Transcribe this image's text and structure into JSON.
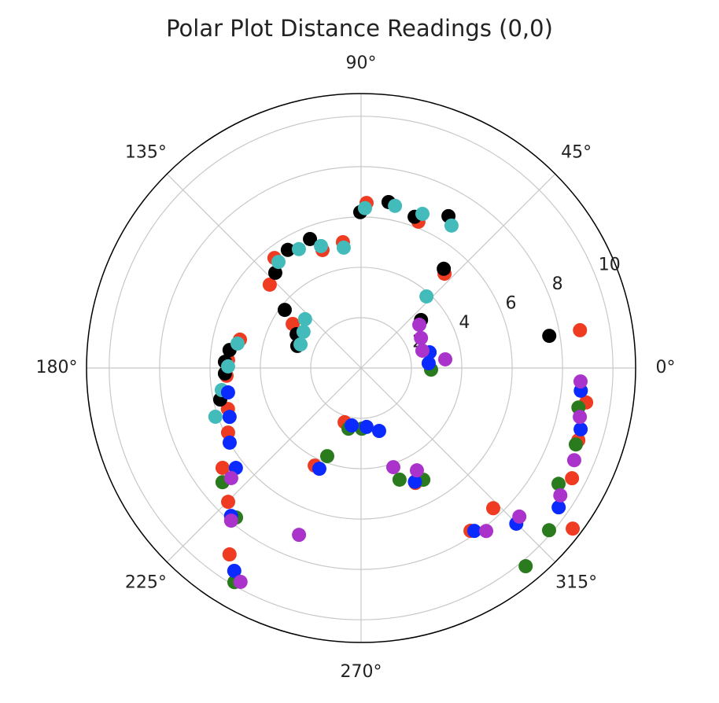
{
  "chart_data": {
    "type": "polar-scatter",
    "title": "Polar Plot Distance Readings (0,0)",
    "rlim": [
      0,
      10.9
    ],
    "rticks": [
      2,
      4,
      6,
      8,
      10
    ],
    "thetaticks": [
      {
        "value": 0,
        "label": "0°"
      },
      {
        "value": 45,
        "label": "45°"
      },
      {
        "value": 90,
        "label": "90°"
      },
      {
        "value": 135,
        "label": "135°"
      },
      {
        "value": 180,
        "label": "180°"
      },
      {
        "value": 225,
        "label": "225°"
      },
      {
        "value": 270,
        "label": "270°"
      },
      {
        "value": 315,
        "label": "315°"
      }
    ],
    "grid": true,
    "series": [
      {
        "color": "#ee3b22",
        "theta": [
          88.1,
          68.6,
          48.5,
          137.6,
          128.2,
          108.1,
          98.2,
          147.2,
          166.8,
          176.6,
          183.3,
          197.1,
          205.9,
          215.8,
          225.2,
          234.8,
          244.6,
          295.3,
          303.9,
          313.3,
          9.8,
          351.3,
          341.6,
          332.4,
          322.8,
          253.1
        ],
        "r": [
          6.56,
          6.24,
          5.0,
          4.91,
          5.56,
          4.93,
          5.05,
          3.23,
          4.94,
          5.29,
          5.35,
          5.53,
          5.87,
          6.78,
          7.49,
          9.06,
          4.29,
          5.05,
          7.79,
          7.65,
          8.82,
          9.04,
          9.09,
          9.45,
          10.55,
          2.25
        ]
      },
      {
        "color": "#000000",
        "theta": [
          90.3,
          80.6,
          70.5,
          60.1,
          50.2,
          111.6,
          121.8,
          132.0,
          142.7,
          152.3,
          160.9,
          172.2,
          177.4,
          182.3,
          192.6,
          9.7,
          38.7
        ],
        "r": [
          6.19,
          6.68,
          6.37,
          6.96,
          5.13,
          5.51,
          5.52,
          5.09,
          3.81,
          2.89,
          2.68,
          5.27,
          5.41,
          5.41,
          5.73,
          7.58,
          3.05
        ]
      },
      {
        "color": "#44bbbb",
        "theta": [
          88.6,
          78.2,
          68.3,
          57.6,
          47.6,
          98.2,
          108.2,
          117.6,
          127.9,
          138.9,
          147.8,
          158.7,
          168.8,
          179.3,
          189.0,
          198.5
        ],
        "r": [
          6.35,
          6.58,
          6.59,
          6.7,
          3.85,
          4.83,
          5.1,
          5.33,
          5.34,
          2.95,
          2.7,
          2.58,
          5.0,
          5.28,
          5.6,
          6.1
        ]
      },
      {
        "color": "#2a7a1e",
        "theta": [
          358.7,
          258.3,
          270.7,
          249.0,
          289.0,
          299.1,
          219.5,
          230.1,
          239.4,
          309.7,
          319.2,
          329.6,
          349.7,
          340.4
        ],
        "r": [
          2.78,
          2.46,
          2.41,
          3.75,
          4.69,
          5.08,
          7.13,
          7.74,
          9.88,
          10.23,
          9.86,
          9.09,
          8.77,
          9.05
        ]
      },
      {
        "color": "#0a2aff",
        "theta": [
          12.9,
          4.0,
          260.7,
          275.3,
          286.0,
          247.5,
          295.3,
          304.8,
          314.9,
          324.8,
          354.1,
          344.4,
          190.4,
          200.4,
          209.6,
          218.6,
          228.7,
          238.0
        ],
        "r": [
          2.79,
          2.69,
          2.31,
          2.35,
          2.6,
          4.33,
          5.0,
          7.88,
          8.73,
          9.6,
          8.77,
          9.05,
          5.37,
          5.57,
          6.0,
          6.36,
          7.82,
          9.5
        ]
      },
      {
        "color": "#aa33cc",
        "theta": [
          36.6,
          26.6,
          15.8,
          5.9,
          288.0,
          298.6,
          249.6,
          220.3,
          229.6,
          240.6,
          307.5,
          316.8,
          327.4,
          336.6,
          356.5,
          347.4
        ],
        "r": [
          2.88,
          2.66,
          2.53,
          3.36,
          4.14,
          4.63,
          7.07,
          6.76,
          7.96,
          9.75,
          8.16,
          8.62,
          9.39,
          9.22,
          8.73,
          8.9
        ]
      }
    ]
  }
}
